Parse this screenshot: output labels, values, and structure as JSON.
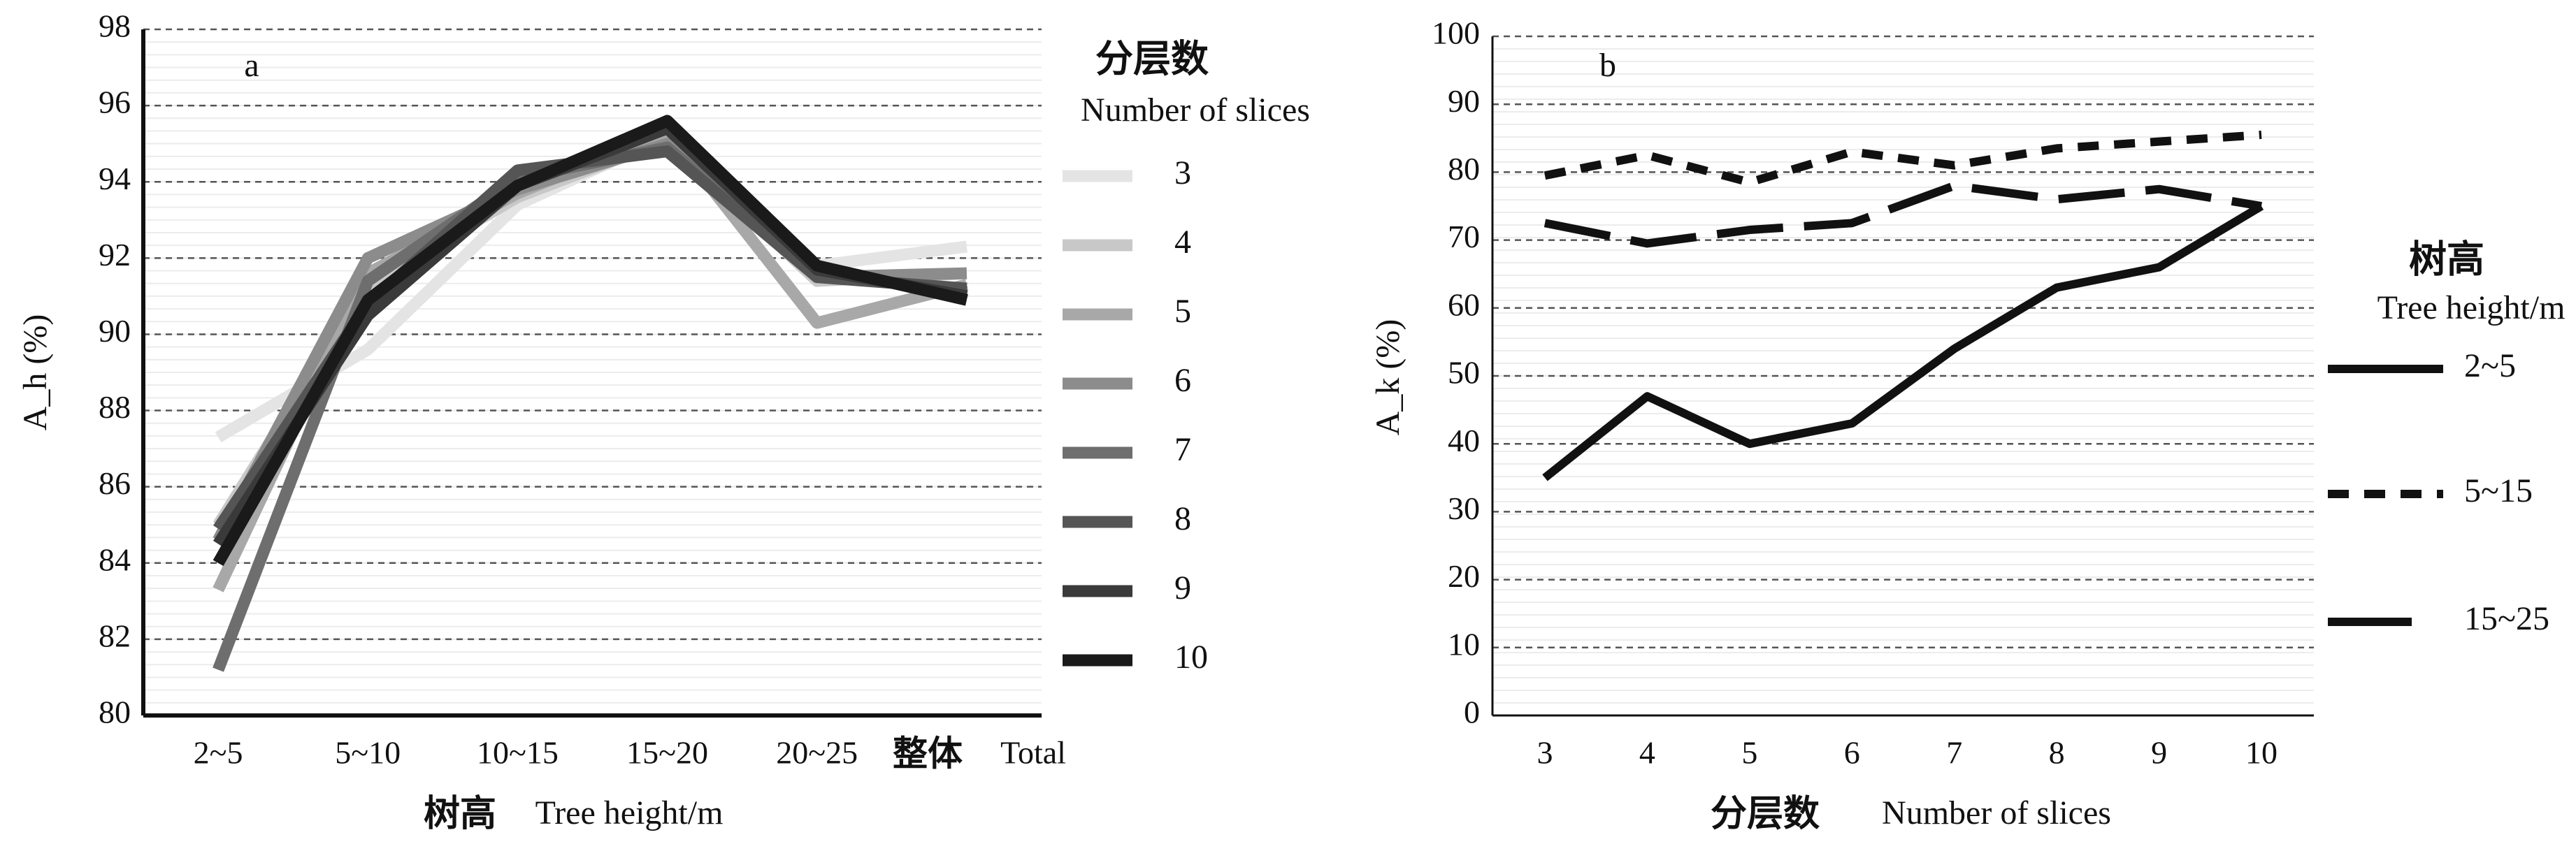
{
  "chart_data": [
    {
      "panel": "a",
      "type": "line",
      "categories": [
        "2~5",
        "5~10",
        "10~15",
        "15~20",
        "20~25",
        "整体 Total"
      ],
      "category_labels": [
        {
          "text": "2~5"
        },
        {
          "text": "5~10"
        },
        {
          "text": "10~15"
        },
        {
          "text": "15~20"
        },
        {
          "text": "20~25"
        },
        {
          "text": "整体",
          "cjk": true,
          "suffix": "Total"
        }
      ],
      "xlabel": {
        "cn": "树高",
        "en": "Tree height/m"
      },
      "ylabel": "A_h (%)",
      "ylim": [
        80,
        98
      ],
      "yticks": [
        80,
        82,
        84,
        86,
        88,
        90,
        92,
        94,
        96,
        98
      ],
      "grid": "dashed-major-horizontal",
      "legend": {
        "title_cn": "分层数",
        "title_en": "Number of slices",
        "placement": "right"
      },
      "series": [
        {
          "name": "3",
          "color": "#e4e4e4",
          "values": [
            87.3,
            89.6,
            93.4,
            95.2,
            91.8,
            92.3
          ]
        },
        {
          "name": "4",
          "color": "#c8c8c8",
          "values": [
            85.0,
            91.3,
            93.6,
            95.1,
            91.4,
            91.6
          ]
        },
        {
          "name": "5",
          "color": "#a8a8a8",
          "values": [
            83.3,
            91.6,
            93.7,
            95.3,
            90.3,
            91.3
          ]
        },
        {
          "name": "6",
          "color": "#8c8c8c",
          "values": [
            84.6,
            92.0,
            93.8,
            95.0,
            91.5,
            91.6
          ]
        },
        {
          "name": "7",
          "color": "#6e6e6e",
          "values": [
            81.2,
            91.4,
            94.1,
            94.9,
            91.6,
            91.1
          ]
        },
        {
          "name": "8",
          "color": "#555555",
          "values": [
            84.9,
            90.8,
            94.3,
            94.8,
            91.5,
            91.2
          ]
        },
        {
          "name": "9",
          "color": "#3a3a3a",
          "values": [
            84.5,
            90.5,
            93.9,
            95.4,
            91.7,
            91.0
          ]
        },
        {
          "name": "10",
          "color": "#1a1a1a",
          "values": [
            84.0,
            90.9,
            93.9,
            95.6,
            91.8,
            90.9
          ]
        }
      ]
    },
    {
      "panel": "b",
      "type": "line",
      "x": [
        3,
        4,
        5,
        6,
        7,
        8,
        9,
        10
      ],
      "xlabel": {
        "cn": "分层数",
        "en": "Number of slices"
      },
      "ylabel": "A_k (%)",
      "ylim": [
        0,
        100
      ],
      "yticks": [
        0,
        10,
        20,
        30,
        40,
        50,
        60,
        70,
        80,
        90,
        100
      ],
      "grid": "dashed-major-horizontal",
      "legend": {
        "title_cn": "树高",
        "title_en": "Tree height/m",
        "placement": "right"
      },
      "series": [
        {
          "name": "2~5",
          "style": "solid",
          "color": "#111111",
          "values": [
            35,
            47,
            40,
            43,
            54,
            63,
            66,
            75
          ]
        },
        {
          "name": "5~15",
          "style": "short-dash",
          "color": "#111111",
          "values": [
            79.5,
            82.5,
            78.5,
            83,
            81,
            83.5,
            84.5,
            85.5
          ]
        },
        {
          "name": "15~25",
          "style": "long-dash",
          "color": "#111111",
          "values": [
            72.5,
            69.5,
            71.5,
            72.5,
            78,
            76,
            77.5,
            75
          ]
        }
      ]
    }
  ]
}
